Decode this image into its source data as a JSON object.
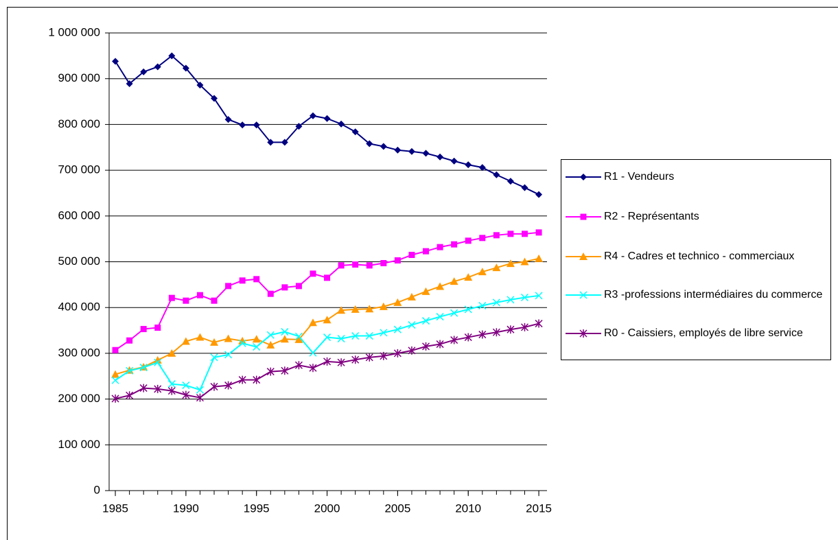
{
  "chart_data": {
    "type": "line",
    "x": [
      1985,
      1986,
      1987,
      1988,
      1989,
      1990,
      1991,
      1992,
      1993,
      1994,
      1995,
      1996,
      1997,
      1998,
      1999,
      2000,
      2001,
      2002,
      2003,
      2004,
      2005,
      2006,
      2007,
      2008,
      2009,
      2010,
      2011,
      2012,
      2013,
      2014,
      2015
    ],
    "series": [
      {
        "name": "R1 - Vendeurs",
        "color": "#000080",
        "marker": "diamond",
        "values": [
          938000,
          889000,
          915000,
          926000,
          950000,
          923000,
          886000,
          857000,
          811000,
          799000,
          799000,
          761000,
          761000,
          796000,
          819000,
          813000,
          801000,
          784000,
          758000,
          752000,
          744000,
          741000,
          737000,
          729000,
          720000,
          712000,
          706000,
          690000,
          676000,
          662000,
          647000
        ]
      },
      {
        "name": "R2 - Représentants",
        "color": "#ff00ff",
        "marker": "square",
        "values": [
          307000,
          328000,
          353000,
          356000,
          421000,
          415000,
          427000,
          415000,
          447000,
          459000,
          462000,
          430000,
          444000,
          447000,
          474000,
          465000,
          492000,
          494000,
          492000,
          497000,
          503000,
          515000,
          523000,
          532000,
          538000,
          546000,
          552000,
          558000,
          561000,
          561000,
          564000
        ]
      },
      {
        "name": "R4 - Cadres et technico - commerciaux",
        "color": "#ff9900",
        "marker": "triangle",
        "values": [
          254000,
          263000,
          270000,
          285000,
          300000,
          326000,
          335000,
          324000,
          332000,
          327000,
          331000,
          318000,
          331000,
          330000,
          367000,
          373000,
          394000,
          396000,
          397000,
          402000,
          411000,
          423000,
          435000,
          446000,
          457000,
          466000,
          478000,
          487000,
          496000,
          500000,
          507000
        ]
      },
      {
        "name": "R3 -professions intermédiaires du commerce",
        "color": "#00ffff",
        "marker": "x",
        "values": [
          241000,
          262000,
          269000,
          280000,
          233000,
          230000,
          220000,
          291000,
          297000,
          322000,
          314000,
          340000,
          347000,
          337000,
          301000,
          335000,
          332000,
          338000,
          338000,
          345000,
          352000,
          362000,
          371000,
          380000,
          388000,
          396000,
          404000,
          411000,
          417000,
          422000,
          426000
        ]
      },
      {
        "name": "R0 - Caissiers, employés de libre service",
        "color": "#800080",
        "marker": "star",
        "values": [
          201000,
          208000,
          224000,
          222000,
          218000,
          209000,
          203000,
          227000,
          230000,
          242000,
          242000,
          260000,
          262000,
          274000,
          268000,
          282000,
          280000,
          286000,
          291000,
          294000,
          300000,
          306000,
          315000,
          320000,
          329000,
          335000,
          341000,
          346000,
          352000,
          357000,
          365000
        ]
      }
    ],
    "xlim": [
      1984.56,
      2015.58
    ],
    "xticks": [
      1985,
      1990,
      1995,
      2000,
      2005,
      2010,
      2015
    ],
    "ylim": [
      0,
      1000000
    ],
    "yticks": [
      0,
      {
        "value": 100000,
        "label": "100 000"
      },
      {
        "value": 200000,
        "label": "200 000"
      },
      {
        "value": 300000,
        "label": "300 000"
      },
      {
        "value": 400000,
        "label": "400 000"
      },
      {
        "value": 500000,
        "label": "500 000"
      },
      {
        "value": 600000,
        "label": "600 000"
      },
      {
        "value": 700000,
        "label": "700 000"
      },
      {
        "value": 800000,
        "label": "800 000"
      },
      {
        "value": 900000,
        "label": "900 000"
      },
      {
        "value": 1000000,
        "label": "1 000 000"
      }
    ],
    "grid": true,
    "legend": "right"
  }
}
